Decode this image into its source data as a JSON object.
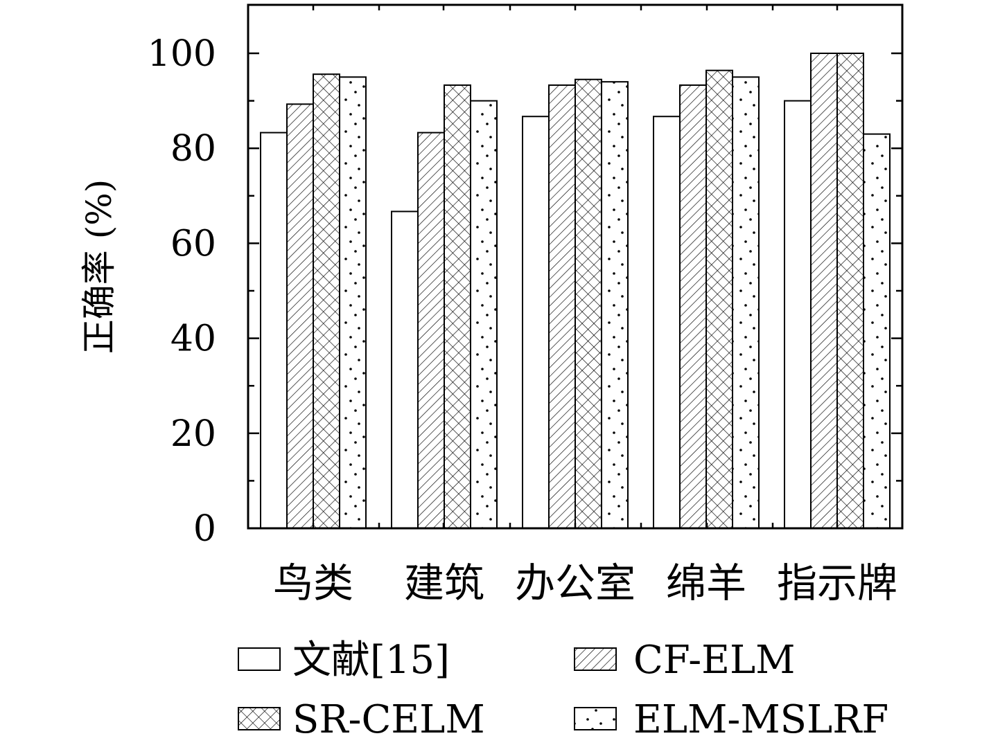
{
  "chart_data": {
    "type": "bar",
    "title": "",
    "xlabel": "",
    "ylabel": "正确率 (%)",
    "ylim": [
      0,
      110
    ],
    "yticks": [
      0,
      20,
      40,
      60,
      80,
      100
    ],
    "grid": false,
    "legend_position": "bottom",
    "categories": [
      "鸟类",
      "建筑",
      "办公室",
      "绵羊",
      "指示牌"
    ],
    "series": [
      {
        "name": "文献[15]",
        "pattern": "empty",
        "values": [
          83.3,
          66.7,
          86.7,
          86.7,
          90.0
        ]
      },
      {
        "name": "CF-ELM",
        "pattern": "diagonal-hatch",
        "values": [
          89.3,
          83.3,
          93.3,
          93.3,
          100.0
        ]
      },
      {
        "name": "SR-CELM",
        "pattern": "cross-hatch",
        "values": [
          95.6,
          93.3,
          94.5,
          96.4,
          100.0
        ]
      },
      {
        "name": "ELM-MSLRF",
        "pattern": "dots",
        "values": [
          95.0,
          90.0,
          94.0,
          95.0,
          83.0
        ]
      }
    ]
  }
}
